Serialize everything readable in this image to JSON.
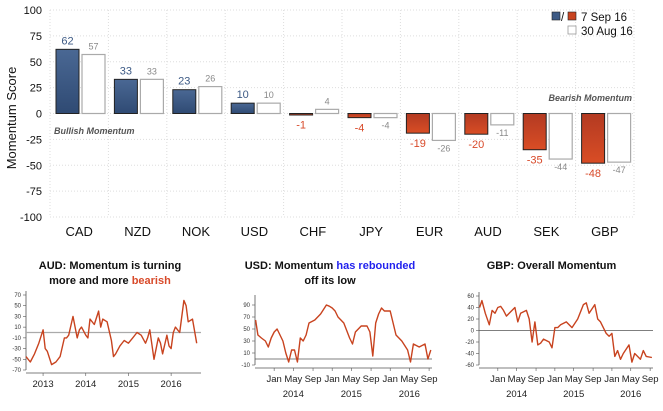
{
  "chart_data": [
    {
      "type": "bar",
      "ylabel": "Momentum Score",
      "ylim": [
        -100,
        100
      ],
      "yticks": [
        100,
        75,
        50,
        25,
        0,
        -25,
        -50,
        -75,
        -100
      ],
      "grid": true,
      "legend": {
        "placement": "top-right",
        "current_label": "7 Sep 16",
        "previous_label": "30 Aug 16",
        "separator": "/"
      },
      "categories": [
        "CAD",
        "NZD",
        "NOK",
        "USD",
        "CHF",
        "JPY",
        "EUR",
        "AUD",
        "SEK",
        "GBP"
      ],
      "series": [
        {
          "name": "7 Sep 16",
          "values": [
            62,
            33,
            23,
            10,
            -1,
            -4,
            -19,
            -20,
            -35,
            -48
          ]
        },
        {
          "name": "30 Aug 16",
          "values": [
            57,
            33,
            26,
            10,
            4,
            -4,
            -26,
            -11,
            -44,
            -47
          ]
        }
      ],
      "annotations": {
        "bullish": "Bullish Momentum",
        "bearish": "Bearish Momentum"
      },
      "colors": {
        "positive": "#3d5a85",
        "negative": "#c8431f",
        "previous_fill": "#ffffff",
        "previous_border": "#aaaaaa",
        "positive_label": "#3d5a85",
        "negative_label": "#d84a2a"
      }
    },
    {
      "type": "line",
      "title_parts": [
        {
          "text": "AUD: Momentum is turning",
          "color": "#111111",
          "line": 0
        },
        {
          "text": "more and more ",
          "color": "#111111",
          "line": 1
        },
        {
          "text": "bearish",
          "color": "#d84a2a",
          "line": 1
        }
      ],
      "ylim": [
        -70,
        70
      ],
      "yticks": [
        70,
        50,
        30,
        10,
        -10,
        -30,
        -50,
        -70
      ],
      "xlim": [
        2012.6,
        2016.7
      ],
      "xticks": [
        {
          "v": 2013,
          "label": "2013"
        },
        {
          "v": 2014,
          "label": "2014"
        },
        {
          "v": 2015,
          "label": "2015"
        },
        {
          "v": 2016,
          "label": "2016"
        }
      ],
      "reference_line": 0,
      "line_color": "#c8431f",
      "x": [
        2012.6,
        2012.7,
        2012.8,
        2012.9,
        2013.0,
        2013.05,
        2013.1,
        2013.2,
        2013.3,
        2013.4,
        2013.5,
        2013.55,
        2013.6,
        2013.7,
        2013.8,
        2013.85,
        2013.9,
        2014.0,
        2014.05,
        2014.1,
        2014.2,
        2014.3,
        2014.35,
        2014.4,
        2014.5,
        2014.6,
        2014.65,
        2014.7,
        2014.8,
        2014.9,
        2015.0,
        2015.1,
        2015.2,
        2015.3,
        2015.4,
        2015.45,
        2015.5,
        2015.6,
        2015.7,
        2015.75,
        2015.8,
        2015.9,
        2015.95,
        2016.0,
        2016.05,
        2016.1,
        2016.2,
        2016.3,
        2016.35,
        2016.4,
        2016.5,
        2016.6
      ],
      "y": [
        -45,
        -55,
        -40,
        -20,
        5,
        -30,
        -35,
        -60,
        -55,
        -45,
        -10,
        -10,
        -5,
        30,
        -10,
        5,
        10,
        -5,
        -10,
        25,
        15,
        40,
        10,
        25,
        20,
        -15,
        -45,
        -40,
        -25,
        -15,
        -20,
        -10,
        0,
        -5,
        -20,
        -10,
        5,
        -50,
        -10,
        -20,
        -40,
        -5,
        -25,
        -30,
        0,
        10,
        0,
        60,
        50,
        20,
        25,
        -20
      ]
    },
    {
      "type": "line",
      "title_parts": [
        {
          "text": "USD: Momentum ",
          "color": "#111111",
          "line": 0
        },
        {
          "text": "has rebounded",
          "color": "#2222ee",
          "line": 0
        },
        {
          "text": "off its low",
          "color": "#111111",
          "line": 1
        }
      ],
      "ylim": [
        -10,
        100
      ],
      "yticks": [
        90,
        70,
        50,
        30,
        10,
        -10
      ],
      "xlim": [
        2013.67,
        2016.72
      ],
      "xticks": [
        {
          "v": 2014.0,
          "label": "Jan"
        },
        {
          "v": 2014.33,
          "label": "May"
        },
        {
          "v": 2014.67,
          "label": "Sep"
        },
        {
          "v": 2015.0,
          "label": "Jan"
        },
        {
          "v": 2015.33,
          "label": "May"
        },
        {
          "v": 2015.67,
          "label": "Sep"
        },
        {
          "v": 2016.0,
          "label": "Jan"
        },
        {
          "v": 2016.33,
          "label": "May"
        },
        {
          "v": 2016.67,
          "label": "Sep"
        }
      ],
      "year_labels": [
        {
          "v": 2014.33,
          "label": "2014"
        },
        {
          "v": 2015.33,
          "label": "2015"
        },
        {
          "v": 2016.33,
          "label": "2016"
        }
      ],
      "reference_line": 0,
      "line_color": "#c8431f",
      "x": [
        2013.68,
        2013.72,
        2013.78,
        2013.85,
        2013.9,
        2013.95,
        2014.0,
        2014.05,
        2014.1,
        2014.15,
        2014.2,
        2014.25,
        2014.3,
        2014.35,
        2014.4,
        2014.45,
        2014.5,
        2014.55,
        2014.6,
        2014.7,
        2014.8,
        2014.9,
        2014.95,
        2015.0,
        2015.05,
        2015.1,
        2015.2,
        2015.3,
        2015.35,
        2015.4,
        2015.5,
        2015.6,
        2015.65,
        2015.7,
        2015.75,
        2015.8,
        2015.85,
        2015.9,
        2016.0,
        2016.05,
        2016.1,
        2016.2,
        2016.3,
        2016.35,
        2016.4,
        2016.5,
        2016.6,
        2016.65,
        2016.7
      ],
      "y": [
        65,
        40,
        35,
        30,
        20,
        35,
        45,
        50,
        40,
        30,
        10,
        -5,
        15,
        15,
        -5,
        35,
        30,
        40,
        60,
        65,
        75,
        90,
        88,
        85,
        80,
        70,
        60,
        35,
        25,
        45,
        55,
        55,
        45,
        5,
        60,
        75,
        85,
        80,
        80,
        60,
        40,
        30,
        15,
        -5,
        25,
        20,
        25,
        0,
        15
      ]
    },
    {
      "type": "line",
      "title_parts": [
        {
          "text": "GBP: Overall Momentum",
          "color": "#111111",
          "line": 0
        }
      ],
      "ylim": [
        -60,
        60
      ],
      "yticks": [
        60,
        40,
        20,
        0,
        -20,
        -40,
        -60
      ],
      "xlim": [
        2013.67,
        2016.72
      ],
      "xticks": [
        {
          "v": 2014.0,
          "label": "Jan"
        },
        {
          "v": 2014.33,
          "label": "May"
        },
        {
          "v": 2014.67,
          "label": "Sep"
        },
        {
          "v": 2015.0,
          "label": "Jan"
        },
        {
          "v": 2015.33,
          "label": "May"
        },
        {
          "v": 2015.67,
          "label": "Sep"
        },
        {
          "v": 2016.0,
          "label": "Jan"
        },
        {
          "v": 2016.33,
          "label": "May"
        },
        {
          "v": 2016.67,
          "label": "Sep"
        }
      ],
      "year_labels": [
        {
          "v": 2014.33,
          "label": "2014"
        },
        {
          "v": 2015.33,
          "label": "2015"
        },
        {
          "v": 2016.33,
          "label": "2016"
        }
      ],
      "reference_line": 0,
      "line_color": "#c8431f",
      "x": [
        2013.68,
        2013.72,
        2013.78,
        2013.85,
        2013.9,
        2013.95,
        2014.0,
        2014.05,
        2014.1,
        2014.15,
        2014.2,
        2014.3,
        2014.35,
        2014.4,
        2014.5,
        2014.55,
        2014.6,
        2014.65,
        2014.7,
        2014.75,
        2014.8,
        2014.9,
        2014.95,
        2015.0,
        2015.05,
        2015.1,
        2015.2,
        2015.3,
        2015.4,
        2015.5,
        2015.55,
        2015.6,
        2015.7,
        2015.75,
        2015.8,
        2015.9,
        2015.95,
        2016.0,
        2016.05,
        2016.1,
        2016.15,
        2016.2,
        2016.3,
        2016.35,
        2016.4,
        2016.5,
        2016.55,
        2016.6,
        2016.7
      ],
      "y": [
        40,
        52,
        30,
        10,
        35,
        30,
        40,
        42,
        35,
        25,
        30,
        40,
        15,
        30,
        35,
        20,
        -20,
        15,
        -25,
        -22,
        -15,
        -20,
        -30,
        5,
        5,
        10,
        15,
        5,
        20,
        45,
        48,
        30,
        45,
        20,
        15,
        -5,
        -10,
        -5,
        -45,
        -35,
        -50,
        -40,
        -25,
        -55,
        -40,
        -50,
        -35,
        -45,
        -47
      ]
    }
  ]
}
